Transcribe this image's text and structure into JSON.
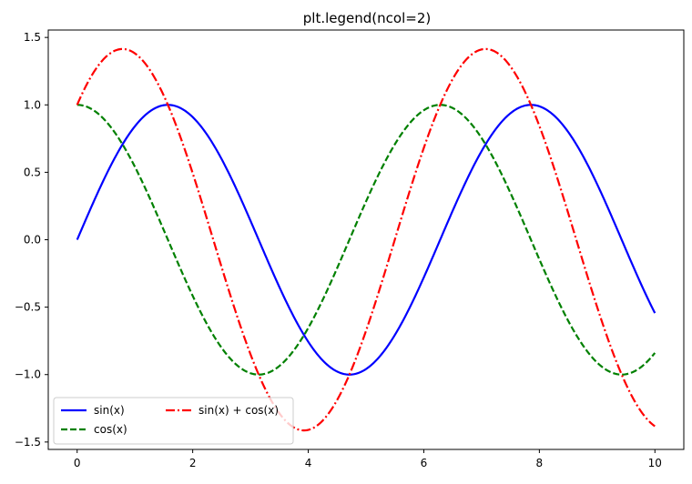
{
  "chart_data": {
    "type": "line",
    "title": "plt.legend(ncol=2)",
    "xlabel": "",
    "ylabel": "",
    "xlim": [
      -0.5,
      10.5
    ],
    "ylim": [
      -1.555,
      1.555
    ],
    "grid": false,
    "x_ticks": [
      0,
      2,
      4,
      6,
      8,
      10
    ],
    "x_tick_labels": [
      "0",
      "2",
      "4",
      "6",
      "8",
      "10"
    ],
    "y_ticks": [
      1.5,
      1.0,
      0.5,
      0.0,
      -0.5,
      -1.0,
      -1.5
    ],
    "y_tick_labels": [
      "1.5",
      "1.0",
      "0.5",
      "0.0",
      "−0.5",
      "−1.0",
      "−1.5"
    ],
    "x": [
      0.0,
      0.5,
      1.0,
      1.5,
      2.0,
      2.5,
      3.0,
      3.5,
      4.0,
      4.5,
      5.0,
      5.5,
      6.0,
      6.5,
      7.0,
      7.5,
      8.0,
      8.5,
      9.0,
      9.5,
      10.0
    ],
    "series": [
      {
        "name": "sin(x)",
        "color": "#0000ff",
        "linestyle": "solid",
        "values": [
          0.0,
          0.479,
          0.841,
          0.997,
          0.909,
          0.598,
          0.141,
          -0.351,
          -0.757,
          -0.978,
          -0.959,
          -0.706,
          -0.279,
          0.215,
          0.657,
          0.938,
          0.989,
          0.798,
          0.412,
          -0.075,
          -0.544
        ]
      },
      {
        "name": "cos(x)",
        "color": "#008000",
        "linestyle": "dashed",
        "values": [
          1.0,
          0.878,
          0.54,
          0.071,
          -0.416,
          -0.801,
          -0.99,
          -0.936,
          -0.654,
          -0.211,
          0.284,
          0.709,
          0.96,
          0.977,
          0.754,
          0.347,
          -0.146,
          -0.602,
          -0.911,
          -0.997,
          -0.839
        ]
      },
      {
        "name": "sin(x) + cos(x)",
        "color": "#ff0000",
        "linestyle": "dashdot",
        "values": [
          1.0,
          1.357,
          1.382,
          1.068,
          0.493,
          -0.203,
          -0.849,
          -1.287,
          -1.411,
          -1.189,
          -0.675,
          0.003,
          0.681,
          1.192,
          1.411,
          1.285,
          0.843,
          0.196,
          -0.499,
          -1.072,
          -1.383
        ]
      }
    ],
    "legend": {
      "location": "lower-left",
      "ncol": 2,
      "entries": [
        "sin(x)",
        "cos(x)",
        "sin(x) + cos(x)"
      ]
    }
  }
}
